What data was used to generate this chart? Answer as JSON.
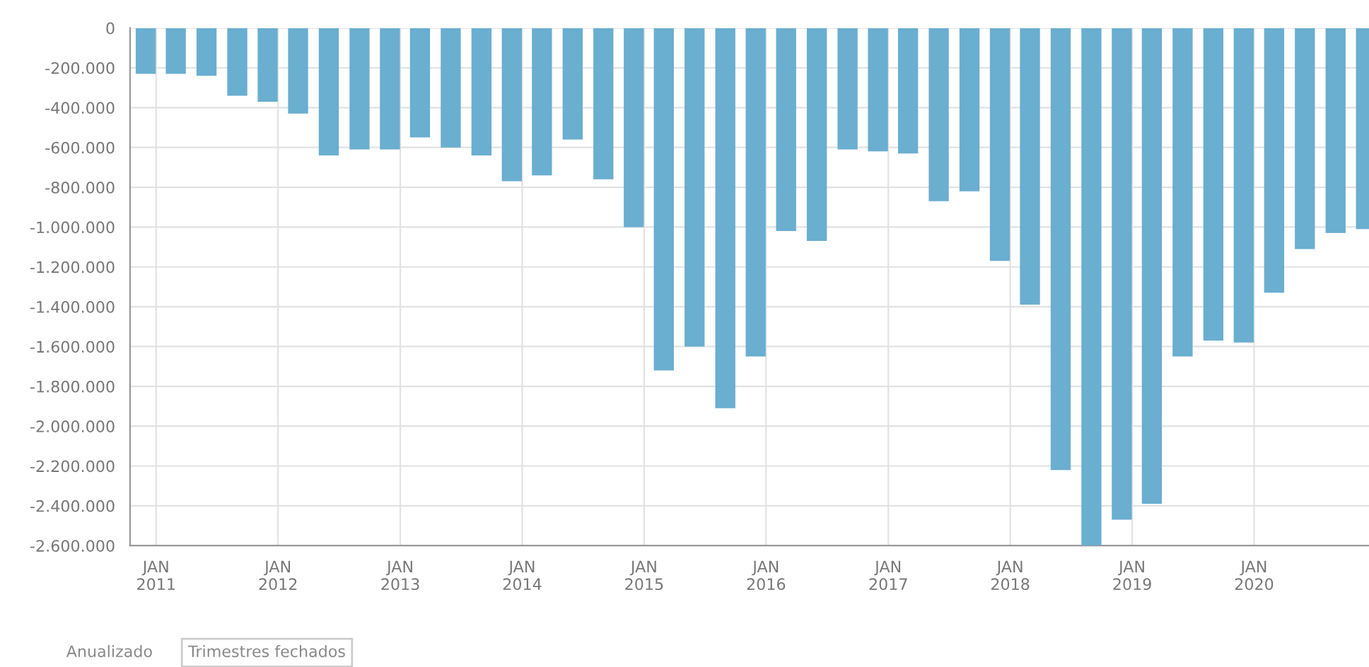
{
  "chart_data": {
    "type": "bar",
    "x": [
      "2010-12",
      "2011-03",
      "2011-06",
      "2011-09",
      "2011-12",
      "2012-03",
      "2012-06",
      "2012-09",
      "2012-12",
      "2013-03",
      "2013-06",
      "2013-09",
      "2013-12",
      "2014-03",
      "2014-06",
      "2014-09",
      "2014-12",
      "2015-03",
      "2015-06",
      "2015-09",
      "2015-12",
      "2016-03",
      "2016-06",
      "2016-09",
      "2016-12",
      "2017-03",
      "2017-06",
      "2017-09",
      "2017-12",
      "2018-03",
      "2018-06",
      "2018-09",
      "2018-12",
      "2019-03",
      "2019-06",
      "2019-09",
      "2019-12",
      "2020-03",
      "2020-06",
      "2020-09",
      "2020-12"
    ],
    "values": [
      -230000,
      -230000,
      -240000,
      -340000,
      -370000,
      -430000,
      -640000,
      -610000,
      -610000,
      -550000,
      -600000,
      -640000,
      -770000,
      -740000,
      -560000,
      -760000,
      -1000000,
      -1720000,
      -1600000,
      -1910000,
      -1650000,
      -1020000,
      -1070000,
      -610000,
      -620000,
      -630000,
      -870000,
      -820000,
      -1170000,
      -1390000,
      -2220000,
      -2600000,
      -2470000,
      -2390000,
      -1650000,
      -1570000,
      -1580000,
      -1330000,
      -1110000,
      -1030000,
      -1010000
    ],
    "color": "#6aaed0",
    "xlim": [
      "2010-10-15",
      "2020-12-10"
    ],
    "xticks": [
      {
        "value": "2011-01",
        "label": "JAN\n2011"
      },
      {
        "value": "2012-01",
        "label": "JAN\n2012"
      },
      {
        "value": "2013-01",
        "label": "JAN\n2013"
      },
      {
        "value": "2014-01",
        "label": "JAN\n2014"
      },
      {
        "value": "2015-01",
        "label": "JAN\n2015"
      },
      {
        "value": "2016-01",
        "label": "JAN\n2016"
      },
      {
        "value": "2017-01",
        "label": "JAN\n2017"
      },
      {
        "value": "2018-01",
        "label": "JAN\n2018"
      },
      {
        "value": "2019-01",
        "label": "JAN\n2019"
      },
      {
        "value": "2020-01",
        "label": "JAN\n2020"
      }
    ],
    "ylim": [
      -2600000,
      0
    ],
    "yticks": [
      0,
      {
        "value": -200000,
        "label": "-200.000"
      },
      {
        "value": -400000,
        "label": "-400.000"
      },
      {
        "value": -600000,
        "label": "-600.000"
      },
      {
        "value": -800000,
        "label": "-800.000"
      },
      {
        "value": -1000000,
        "label": "-1.000.000"
      },
      {
        "value": -1200000,
        "label": "-1.200.000"
      },
      {
        "value": -1400000,
        "label": "-1.400.000"
      },
      {
        "value": -1600000,
        "label": "-1.600.000"
      },
      {
        "value": -1800000,
        "label": "-1.800.000"
      },
      {
        "value": -2000000,
        "label": "-2.000.000"
      },
      {
        "value": -2200000,
        "label": "-2.200.000"
      },
      {
        "value": -2400000,
        "label": "-2.400.000"
      },
      {
        "value": -2600000,
        "label": "-2.600.000"
      }
    ],
    "grid": true,
    "annotations": [
      "Anualizado",
      "Trimestres fechados"
    ]
  }
}
